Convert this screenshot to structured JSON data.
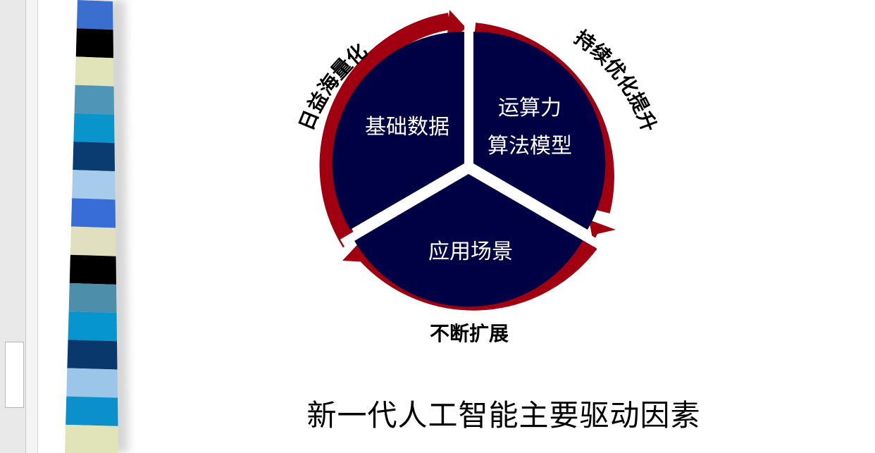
{
  "diagram": {
    "sectors": {
      "top_left": {
        "line1": "基础数据"
      },
      "top_right": {
        "line1": "运算力",
        "line2": "算法模型"
      },
      "bottom": {
        "line1": "应用场景"
      }
    },
    "arc_labels": {
      "left": "日益海量化",
      "right": "持续优化提升",
      "bottom": "不断扩展"
    },
    "colors": {
      "sector_fill": "#000044",
      "arc_red": "#a00010",
      "separator": "#ffffff"
    }
  },
  "slide": {
    "title": "新一代人工智能主要驱动因素"
  },
  "decor": {
    "stripe_colors": [
      "#3a6fd0",
      "#000000",
      "#e1e4b8",
      "#4f95b8",
      "#0a94cc",
      "#0a3c72",
      "#a7cbeb",
      "#386cd6",
      "#e0e0c0",
      "#000000",
      "#4d8fab",
      "#0795cf",
      "#08386c",
      "#9cc5ea",
      "#0b90cc",
      "#e1e4b8"
    ]
  }
}
